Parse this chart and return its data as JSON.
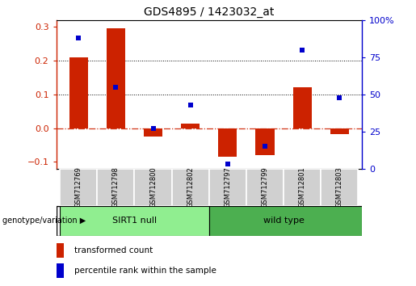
{
  "title": "GDS4895 / 1423032_at",
  "samples": [
    "GSM712769",
    "GSM712798",
    "GSM712800",
    "GSM712802",
    "GSM712797",
    "GSM712799",
    "GSM712801",
    "GSM712803"
  ],
  "bar_values": [
    0.21,
    0.295,
    -0.025,
    0.013,
    -0.085,
    -0.08,
    0.12,
    -0.018
  ],
  "dot_values_pct": [
    88,
    55,
    27,
    43,
    3,
    15,
    80,
    48
  ],
  "bar_color": "#CC2200",
  "dot_color": "#0000CC",
  "ylim_left": [
    -0.12,
    0.32
  ],
  "ylim_right": [
    0,
    100
  ],
  "yticks_left": [
    -0.1,
    0.0,
    0.1,
    0.2,
    0.3
  ],
  "yticks_right": [
    0,
    25,
    50,
    75,
    100
  ],
  "hline_black": [
    0.1,
    0.2
  ],
  "ylabel_left_color": "#CC2200",
  "ylabel_right_color": "#0000CC",
  "bar_width": 0.5,
  "background_color": "#ffffff",
  "sirt1_color": "#90EE90",
  "wildtype_color": "#4CAF50",
  "legend_red_label": "transformed count",
  "legend_blue_label": "percentile rank within the sample",
  "genotype_label": "genotype/variation",
  "title_fontsize": 10,
  "axis_fontsize": 8,
  "sample_label_fontsize": 6,
  "group_label_fontsize": 8,
  "legend_fontsize": 7.5
}
